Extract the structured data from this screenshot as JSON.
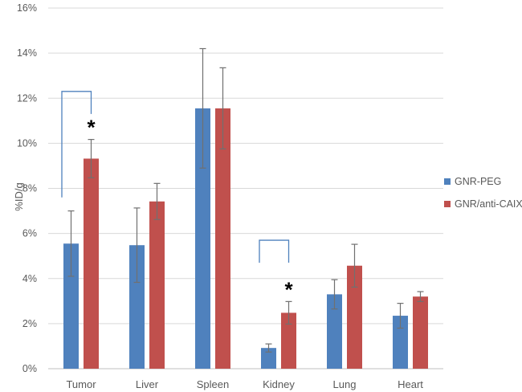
{
  "chart_data": {
    "type": "bar",
    "title": "",
    "xlabel": "",
    "ylabel": "%ID/g",
    "ylim": [
      0,
      16
    ],
    "yticks": [
      "0%",
      "2%",
      "4%",
      "6%",
      "8%",
      "10%",
      "12%",
      "14%",
      "16%"
    ],
    "ytick_values": [
      0,
      2,
      4,
      6,
      8,
      10,
      12,
      14,
      16
    ],
    "grid": true,
    "legend_position": "right",
    "categories": [
      "Tumor",
      "Liver",
      "Spleen",
      "Kidney",
      "Lung",
      "Heart"
    ],
    "series": [
      {
        "name": "GNR-PEG",
        "color": "#4f81bd",
        "values": [
          5.55,
          5.48,
          11.55,
          0.92,
          3.3,
          2.35
        ],
        "errors": [
          1.45,
          1.65,
          2.65,
          0.18,
          0.65,
          0.55
        ]
      },
      {
        "name": "GNR/anti-CAIX",
        "color": "#c0504d",
        "values": [
          9.32,
          7.42,
          11.55,
          2.48,
          4.57,
          3.2
        ],
        "errors": [
          0.85,
          0.8,
          1.8,
          0.5,
          0.95,
          0.22
        ]
      }
    ],
    "significance": [
      {
        "category": "Tumor",
        "label": "*",
        "bracket_low": 7.6,
        "bracket_high": 12.3
      },
      {
        "category": "Kidney",
        "label": "*",
        "bracket_low": 4.7,
        "bracket_high": 5.7
      }
    ],
    "error_bar_color": "#707070",
    "bracket_color": "#4f81bd",
    "grid_color": "#d9d9d9",
    "axis_color": "#bfbfbf"
  }
}
